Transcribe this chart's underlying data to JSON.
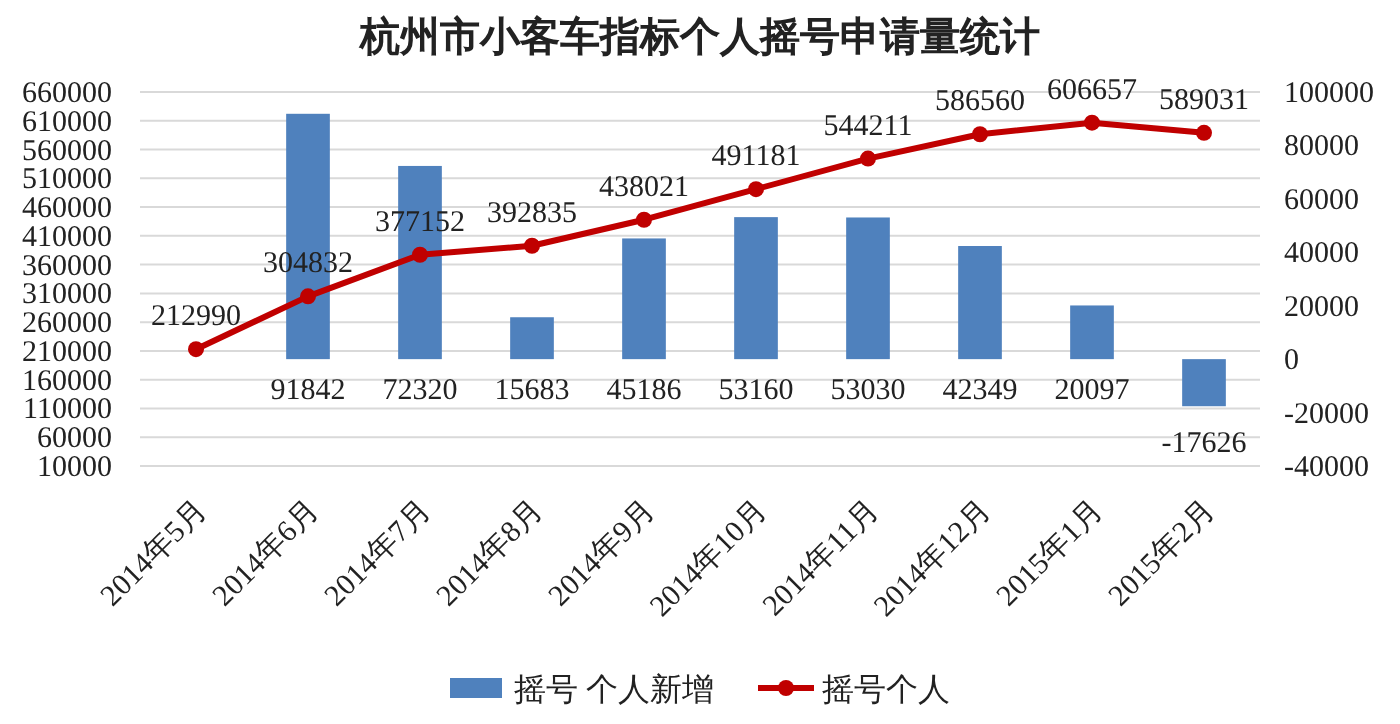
{
  "chart_data": {
    "type": "bar",
    "title": "杭州市小客车指标个人摇号申请量统计",
    "categories": [
      "2014年5月",
      "2014年6月",
      "2014年7月",
      "2014年8月",
      "2014年9月",
      "2014年10月",
      "2014年11月",
      "2014年12月",
      "2015年1月",
      "2015年2月"
    ],
    "series": [
      {
        "name": "摇号 个人新增",
        "axis": "y2",
        "color": "#4f81bd",
        "values": [
          null,
          91842,
          72320,
          15683,
          45186,
          53160,
          53030,
          42349,
          20097,
          -17626
        ]
      },
      {
        "name": "摇号个人",
        "type": "line",
        "axis": "y",
        "color": "#c00000",
        "marker": "circle",
        "values": [
          212990,
          304832,
          377152,
          392835,
          438021,
          491181,
          544211,
          586560,
          606657,
          589031
        ]
      }
    ],
    "ylim": [
      10000,
      660000
    ],
    "yticks": [
      10000,
      60000,
      110000,
      160000,
      210000,
      260000,
      310000,
      360000,
      410000,
      460000,
      510000,
      560000,
      610000,
      660000
    ],
    "y2lim": [
      -40000,
      100000
    ],
    "y2ticks": [
      -40000,
      -20000,
      0,
      20000,
      40000,
      60000,
      80000,
      100000
    ],
    "grid": "y",
    "legend": "bottom",
    "data_labels": true
  }
}
